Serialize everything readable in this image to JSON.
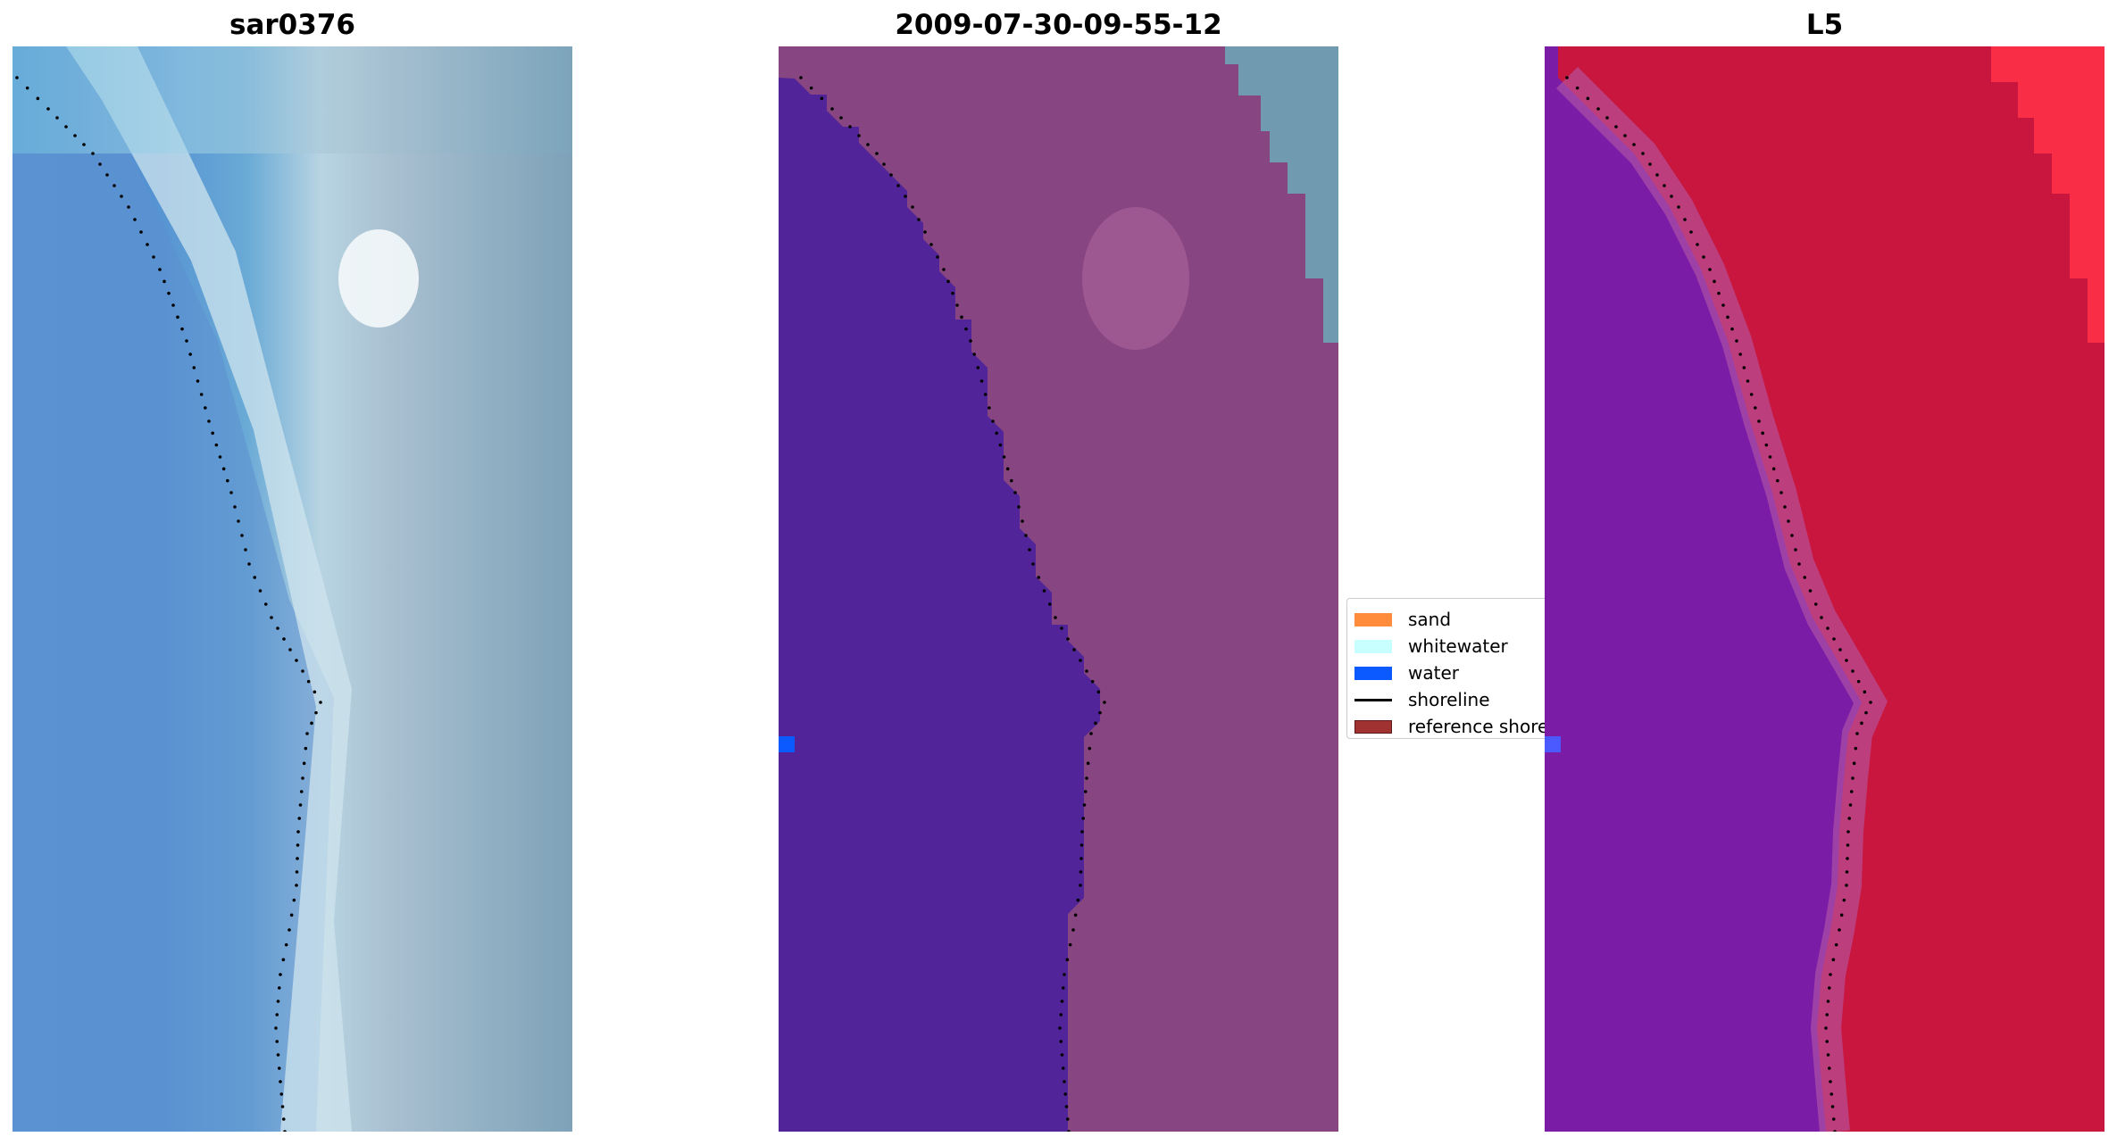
{
  "panels": [
    {
      "title": "sar0376",
      "kind": "rgb-image"
    },
    {
      "title": "2009-07-30-09-55-12",
      "kind": "classified-image"
    },
    {
      "title": "L5",
      "kind": "index-image"
    }
  ],
  "legend": {
    "items": [
      {
        "label": "sand",
        "color": "#ff8c3c",
        "kind": "patch"
      },
      {
        "label": "whitewater",
        "color": "#c8ffff",
        "kind": "patch"
      },
      {
        "label": "water",
        "color": "#0a5aff",
        "kind": "patch"
      },
      {
        "label": "shoreline",
        "color": "#000000",
        "kind": "line"
      },
      {
        "label": "reference shoreline",
        "color": "#a03232",
        "kind": "patch"
      }
    ]
  },
  "colors": {
    "ocean": "#4f8fd0",
    "surf": "#c5dce8",
    "land_rgb": "#8aa8bc",
    "water_class": "#52249a",
    "land_class": "#8e4a86",
    "cloud": "#6f9ab0",
    "index_water": "#7a1aa8",
    "index_land": "#c81640",
    "shoreline": "#000000",
    "water_marker": "#0a5aff"
  }
}
